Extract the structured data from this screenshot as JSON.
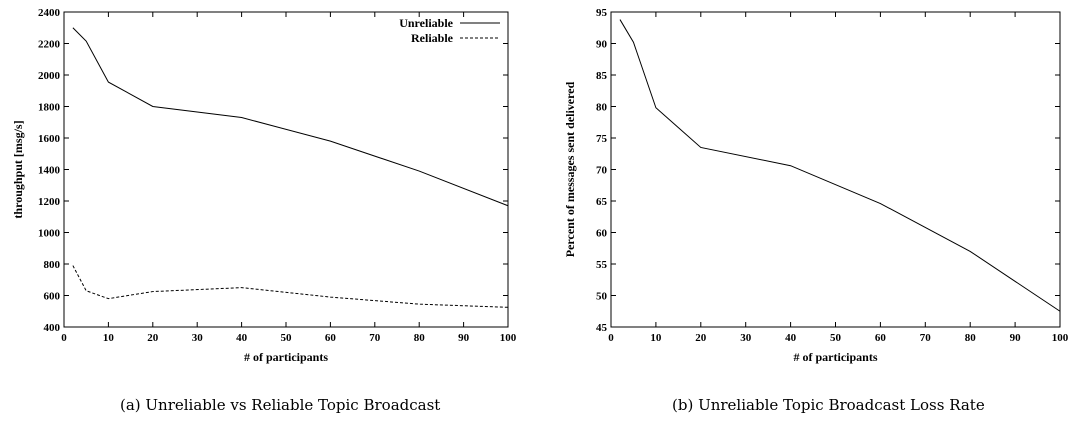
{
  "chart_data": [
    {
      "type": "line",
      "title": "",
      "xlabel": "# of participants",
      "ylabel": "throughput [msg/s]",
      "xlim": [
        0,
        100
      ],
      "ylim": [
        400,
        2400
      ],
      "xticks": [
        0,
        10,
        20,
        30,
        40,
        50,
        60,
        70,
        80,
        90,
        100
      ],
      "yticks": [
        400,
        600,
        800,
        1000,
        1200,
        1400,
        1600,
        1800,
        2000,
        2200,
        2400
      ],
      "legend_position": "top-right",
      "grid": false,
      "series": [
        {
          "name": "Unreliable",
          "style": "solid",
          "x": [
            2,
            5,
            10,
            20,
            40,
            60,
            80,
            100
          ],
          "y": [
            2300,
            2215,
            1955,
            1800,
            1730,
            1580,
            1390,
            1170
          ]
        },
        {
          "name": "Reliable",
          "style": "dashed",
          "x": [
            2,
            5,
            10,
            20,
            40,
            60,
            80,
            100
          ],
          "y": [
            790,
            630,
            580,
            625,
            650,
            590,
            545,
            525
          ]
        }
      ],
      "caption": "(a) Unreliable vs Reliable Topic Broadcast"
    },
    {
      "type": "line",
      "title": "",
      "xlabel": "# of participants",
      "ylabel": "Percent of messages sent delivered",
      "xlim": [
        0,
        100
      ],
      "ylim": [
        45,
        95
      ],
      "xticks": [
        0,
        10,
        20,
        30,
        40,
        50,
        60,
        70,
        80,
        90,
        100
      ],
      "yticks": [
        45,
        50,
        55,
        60,
        65,
        70,
        75,
        80,
        85,
        90,
        95
      ],
      "grid": false,
      "series": [
        {
          "style": "solid",
          "x": [
            2,
            5,
            10,
            20,
            40,
            60,
            80,
            100
          ],
          "y": [
            93.8,
            90.2,
            79.8,
            73.5,
            70.6,
            64.6,
            57.0,
            47.5
          ]
        }
      ],
      "caption": "(b) Unreliable Topic Broadcast Loss Rate"
    }
  ]
}
